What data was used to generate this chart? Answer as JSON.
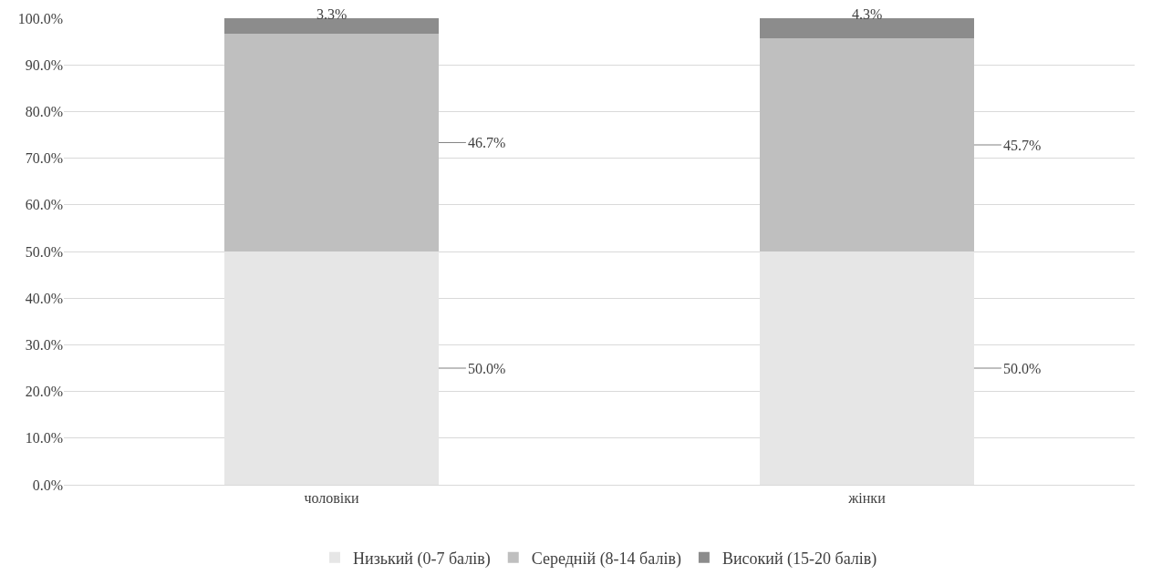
{
  "chart_data": {
    "type": "bar",
    "stacked": true,
    "categories": [
      "чоловіки",
      "жінки"
    ],
    "series": [
      {
        "name": "Низький (0-7 балів)",
        "color": "#e6e6e6",
        "values": [
          50.0,
          50.0
        ],
        "value_labels": [
          "50.0%",
          "50.0%"
        ]
      },
      {
        "name": "Середній (8-14 балів)",
        "color": "#bfbfbf",
        "values": [
          46.7,
          45.7
        ],
        "value_labels": [
          "46.7%",
          "45.7%"
        ]
      },
      {
        "name": "Високий (15-20 балів)",
        "color": "#8c8c8c",
        "values": [
          3.3,
          4.3
        ],
        "value_labels": [
          "3.3%",
          "4.3%"
        ]
      }
    ],
    "ylim": [
      0,
      100
    ],
    "yticks": [
      {
        "value": 0,
        "label": "0.0%"
      },
      {
        "value": 10,
        "label": "10.0%"
      },
      {
        "value": 20,
        "label": "20.0%"
      },
      {
        "value": 30,
        "label": "30.0%"
      },
      {
        "value": 40,
        "label": "40.0%"
      },
      {
        "value": 50,
        "label": "50.0%"
      },
      {
        "value": 60,
        "label": "60.0%"
      },
      {
        "value": 70,
        "label": "70.0%"
      },
      {
        "value": 80,
        "label": "80.0%"
      },
      {
        "value": 90,
        "label": "90.0%"
      },
      {
        "value": 100,
        "label": "100.0%"
      }
    ],
    "grid": "y",
    "legend": "bottom"
  }
}
